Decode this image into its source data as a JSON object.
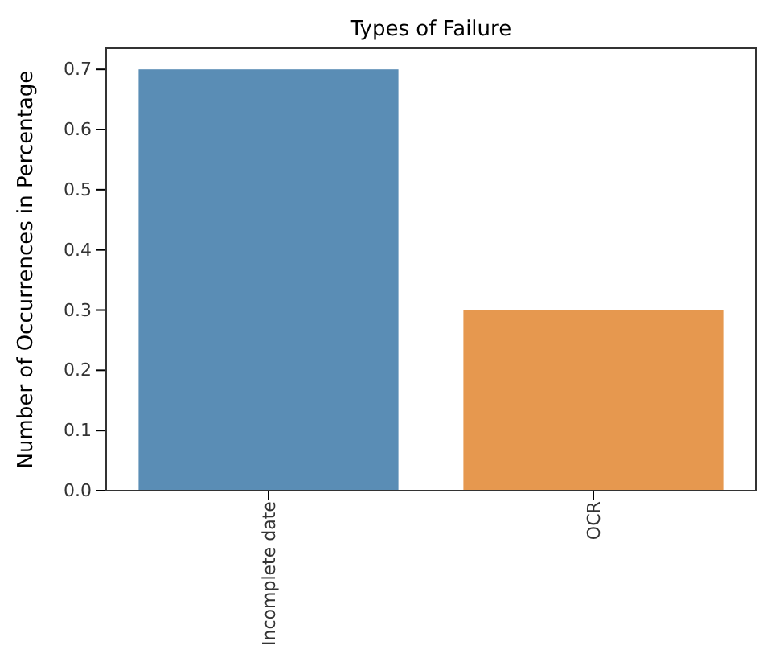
{
  "chart_data": {
    "type": "bar",
    "title": "Types of Failure",
    "ylabel": "Number of Occurrences in Percentage",
    "categories": [
      "Incomplete date",
      "OCR"
    ],
    "values": [
      0.7,
      0.3
    ],
    "colors": [
      "#5a8db5",
      "#e6984f"
    ],
    "ylim": [
      0,
      0.735
    ],
    "yticks": [
      {
        "value": 0,
        "label": "0.0"
      },
      0.1,
      0.2,
      0.3,
      0.4,
      0.5,
      0.6,
      0.7
    ]
  }
}
